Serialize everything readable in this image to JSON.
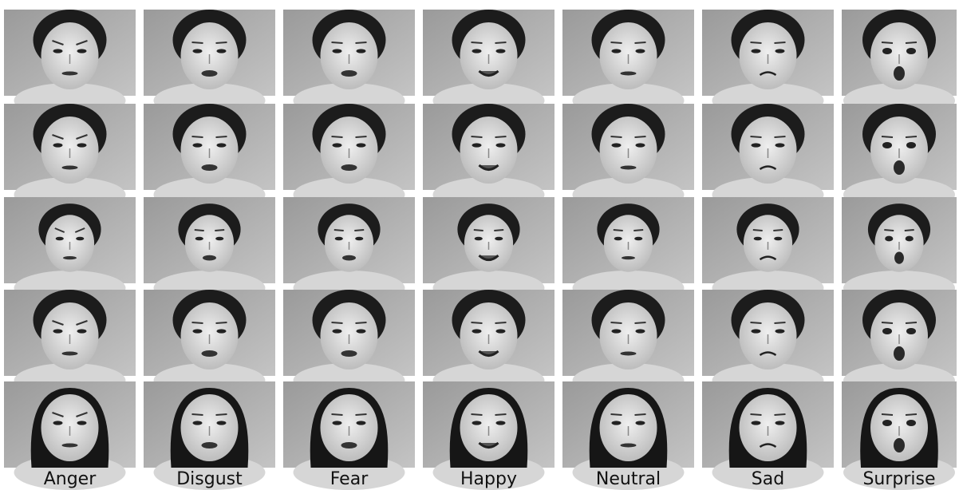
{
  "labels": [
    "Anger",
    "Disgust",
    "Fear",
    "Happy",
    "Neutral",
    "Sad",
    "Surprise"
  ]
}
